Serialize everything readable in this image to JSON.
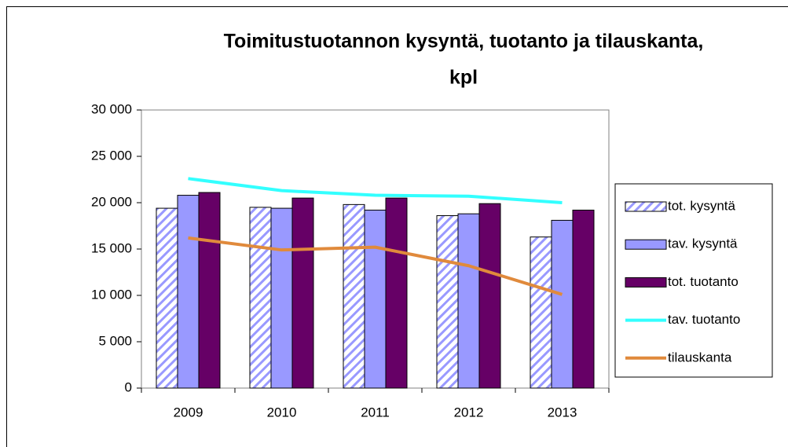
{
  "chart_data": {
    "type": "bar",
    "title": "Toimitustuotannon kysyntä, tuotanto ja tilauskanta,",
    "title_line2": "kpl",
    "categories": [
      "2009",
      "2010",
      "2011",
      "2012",
      "2013"
    ],
    "series": [
      {
        "name": "tot. kysyntä",
        "type": "bar",
        "color": "#9999ff",
        "pattern": "hatch",
        "values": [
          19400,
          19500,
          19800,
          18600,
          16300
        ]
      },
      {
        "name": "tav. kysyntä",
        "type": "bar",
        "color": "#9999ff",
        "values": [
          20800,
          19400,
          19200,
          18800,
          18100
        ]
      },
      {
        "name": "tot. tuotanto",
        "type": "bar",
        "color": "#660066",
        "values": [
          21100,
          20500,
          20500,
          19900,
          19200
        ]
      },
      {
        "name": "tav. tuotanto",
        "type": "line",
        "color": "#33ffff",
        "values": [
          22600,
          21300,
          20800,
          20700,
          20000
        ]
      },
      {
        "name": "tilauskanta",
        "type": "line",
        "color": "#e08a3c",
        "values": [
          16200,
          14900,
          15200,
          13200,
          10100
        ]
      }
    ],
    "ylim": [
      0,
      30000
    ],
    "yticks": [
      0,
      {
        "value": 5000,
        "label": "5 000"
      },
      {
        "value": 10000,
        "label": "10 000"
      },
      {
        "value": 15000,
        "label": "15 000"
      },
      {
        "value": 20000,
        "label": "20 000"
      },
      {
        "value": 25000,
        "label": "25 000"
      },
      {
        "value": 30000,
        "label": "30 000"
      }
    ],
    "legend": "right"
  }
}
